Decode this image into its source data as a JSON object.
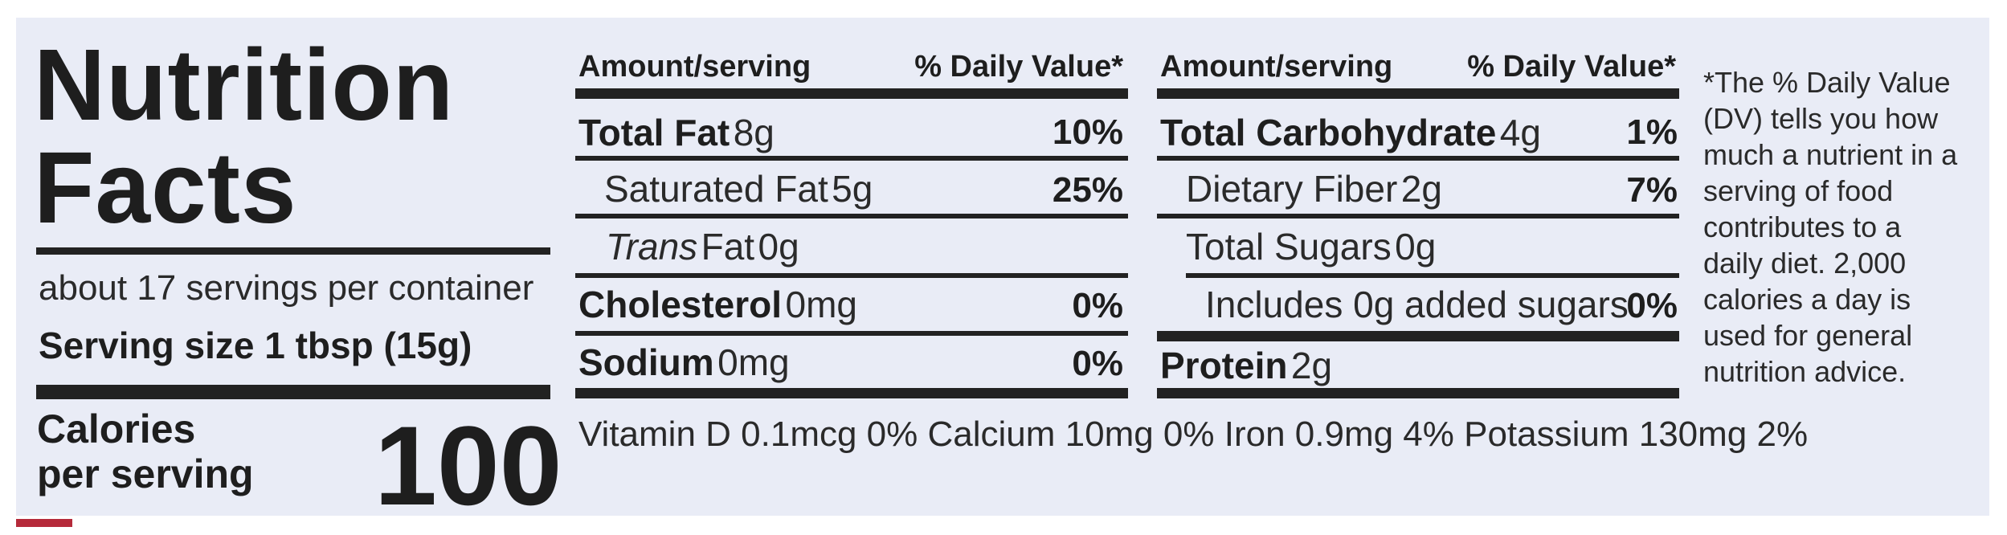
{
  "title": {
    "line1": "Nutrition",
    "line2": "Facts"
  },
  "servings": {
    "per_container": "about 17 servings per container",
    "size": "Serving size 1 tbsp (15g)"
  },
  "calories": {
    "label_line1": "Calories",
    "label_line2": "per serving",
    "value": "100"
  },
  "left_table": {
    "header_amount": "Amount/serving",
    "header_dv": "% Daily Value*",
    "rows": [
      {
        "name": "Total Fat",
        "amount": "8g",
        "dv": "10%"
      },
      {
        "name": "Saturated Fat",
        "amount": "5g",
        "dv": "25%"
      },
      {
        "name": "Trans",
        "name_suffix": "Fat",
        "amount": "0g",
        "dv": ""
      },
      {
        "name": "Cholesterol",
        "amount": "0mg",
        "dv": "0%"
      },
      {
        "name": "Sodium",
        "amount": "0mg",
        "dv": "0%"
      }
    ]
  },
  "right_table": {
    "header_amount": "Amount/serving",
    "header_dv": "% Daily Value*",
    "rows": [
      {
        "name": "Total Carbohydrate",
        "amount": "4g",
        "dv": "1%"
      },
      {
        "name": "Dietary Fiber",
        "amount": "2g",
        "dv": "7%"
      },
      {
        "name": "Total Sugars",
        "amount": "0g",
        "dv": ""
      },
      {
        "name": "Includes 0g added sugars",
        "amount": "",
        "dv": "0%"
      },
      {
        "name": "Protein",
        "amount": "2g",
        "dv": ""
      }
    ]
  },
  "micronutrients": "Vitamin D 0.1mcg 0% Calcium 10mg 0% Iron 0.9mg 4% Potassium 130mg 2%",
  "footnote": "*The % Daily Value (DV) tells you how much a nutrient in a serving of food contributes to a daily diet. 2,000 calories a day is used for general nutrition advice.",
  "colors": {
    "background": "#e9ecf6",
    "ink": "#222222",
    "edge_red": "#b52a3a"
  }
}
